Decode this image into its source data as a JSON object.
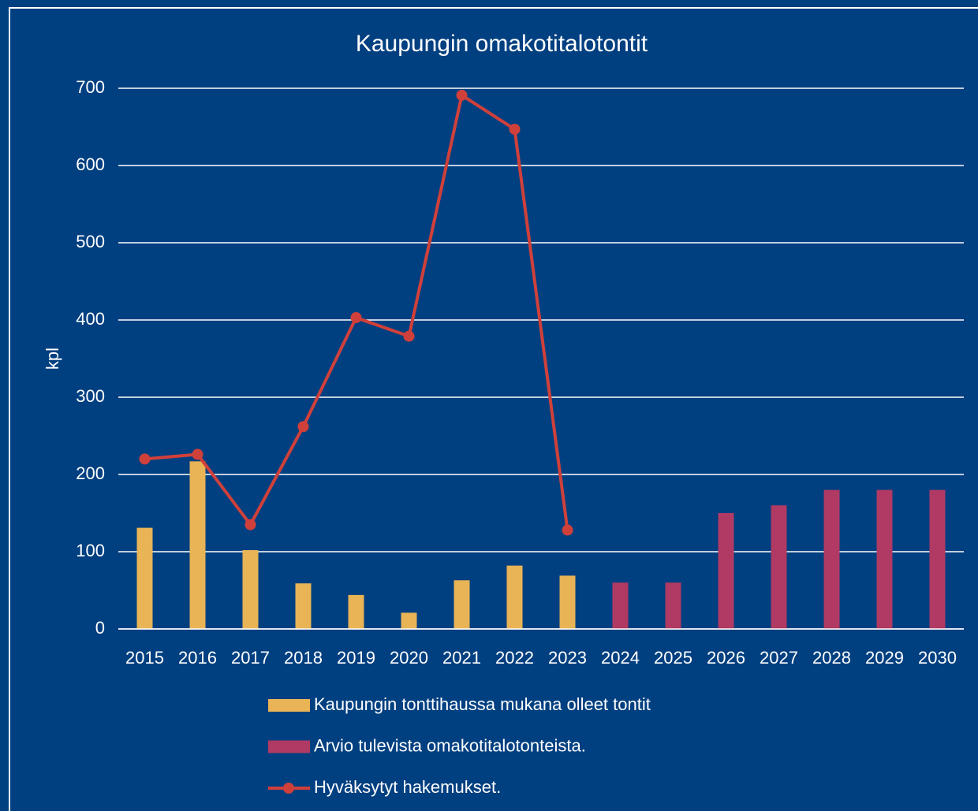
{
  "chart_data": {
    "type": "bar",
    "title": "Kaupungin omakotitalotontit",
    "y_label": "kpl",
    "categories": [
      "2015",
      "2016",
      "2017",
      "2018",
      "2019",
      "2020",
      "2021",
      "2022",
      "2023",
      "2024",
      "2025",
      "2026",
      "2027",
      "2028",
      "2029",
      "2030"
    ],
    "series": [
      {
        "name": "Kaupungin tonttihaussa mukana olleet tontit",
        "type": "bar",
        "color": "#e8b456",
        "values": [
          131,
          217,
          102,
          59,
          44,
          21,
          63,
          82,
          69,
          null,
          null,
          null,
          null,
          null,
          null,
          null
        ]
      },
      {
        "name": "Arvio tulevista omakotitalotonteista.",
        "type": "bar",
        "color": "#b03a63",
        "values": [
          null,
          null,
          null,
          null,
          null,
          null,
          null,
          null,
          null,
          60,
          60,
          150,
          160,
          180,
          180,
          180
        ]
      },
      {
        "name": "Hyväksytyt hakemukset.",
        "type": "line",
        "color": "#d0403a",
        "values": [
          220,
          226,
          135,
          262,
          403,
          379,
          691,
          647,
          128,
          null,
          null,
          null,
          null,
          null,
          null,
          null
        ]
      }
    ],
    "ylim": [
      0,
      700
    ],
    "yticks": [
      0,
      100,
      200,
      300,
      400,
      500,
      600,
      700
    ],
    "grid": true,
    "legend": "bottom"
  }
}
